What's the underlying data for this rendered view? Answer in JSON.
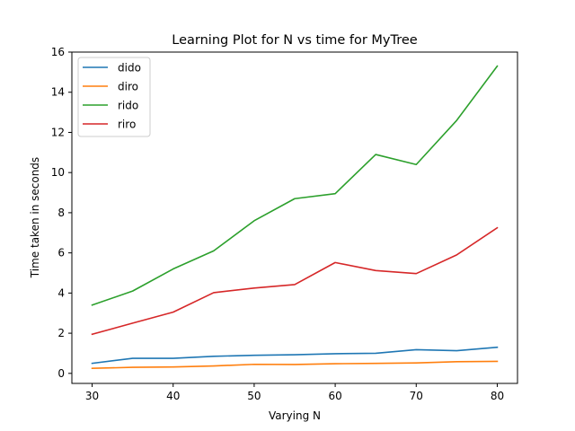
{
  "chart_data": {
    "type": "line",
    "title": "Learning Plot for N vs time for MyTree",
    "xlabel": "Varying N",
    "ylabel": "Time taken in seconds",
    "x": [
      30,
      35,
      40,
      45,
      50,
      55,
      60,
      65,
      70,
      75,
      80
    ],
    "xticks": [
      30,
      40,
      50,
      60,
      70,
      80
    ],
    "yticks": [
      0,
      2,
      4,
      6,
      8,
      10,
      12,
      14,
      16
    ],
    "xlim": [
      27.5,
      82.5
    ],
    "ylim": [
      -0.5,
      16
    ],
    "grid": false,
    "legend_position": "top-left",
    "series": [
      {
        "name": "dido",
        "color": "#1f77b4",
        "values": [
          0.5,
          0.75,
          0.75,
          0.85,
          0.9,
          0.93,
          0.98,
          1.0,
          1.18,
          1.13,
          1.3
        ]
      },
      {
        "name": "diro",
        "color": "#ff7f0e",
        "values": [
          0.25,
          0.3,
          0.32,
          0.37,
          0.45,
          0.44,
          0.48,
          0.5,
          0.52,
          0.58,
          0.6
        ]
      },
      {
        "name": "rido",
        "color": "#2ca02c",
        "values": [
          3.4,
          4.1,
          5.2,
          6.1,
          7.6,
          8.7,
          8.95,
          10.9,
          10.4,
          12.6,
          15.3
        ]
      },
      {
        "name": "riro",
        "color": "#d62728",
        "values": [
          1.95,
          2.5,
          3.05,
          4.02,
          4.25,
          4.42,
          5.52,
          5.12,
          4.97,
          5.9,
          7.25
        ]
      }
    ]
  }
}
